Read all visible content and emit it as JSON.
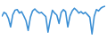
{
  "chart_data": {
    "type": "line",
    "x": [
      1,
      2,
      3,
      4,
      5,
      6,
      7,
      8,
      9,
      10,
      11,
      12,
      13,
      14,
      15,
      16,
      17,
      18,
      19,
      20,
      21,
      22,
      23,
      24,
      25,
      26,
      27,
      28,
      29,
      30,
      31,
      32,
      33,
      34,
      35,
      36,
      37,
      38,
      39,
      40,
      41,
      42,
      43,
      44,
      45,
      46,
      47,
      48
    ],
    "values": [
      60,
      72,
      68,
      55,
      30,
      65,
      78,
      80,
      70,
      74,
      62,
      48,
      20,
      58,
      76,
      82,
      75,
      70,
      72,
      66,
      60,
      15,
      50,
      78,
      70,
      64,
      40,
      72,
      80,
      74,
      30,
      62,
      76,
      84,
      78,
      70,
      74,
      68,
      72,
      65,
      58,
      10,
      60,
      80,
      76,
      84,
      88,
      90
    ],
    "color": "#3b8fd4",
    "xlim": [
      1,
      48
    ],
    "ylim": [
      0,
      100
    ],
    "tick_labels": false
  }
}
